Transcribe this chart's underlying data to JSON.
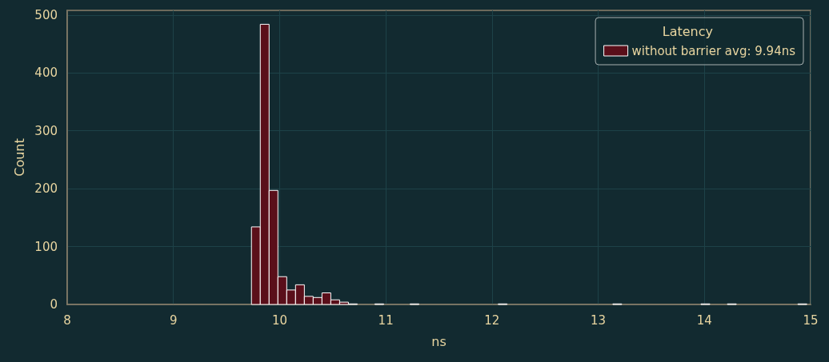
{
  "chart_data": {
    "type": "histogram",
    "xlabel": "ns",
    "ylabel": "Count",
    "legend_title": "Latency",
    "bins": [
      9.735,
      9.818,
      9.901,
      9.984,
      10.067,
      10.15,
      10.233,
      10.316,
      10.399,
      10.482,
      10.565,
      10.648,
      10.731,
      10.814,
      10.897,
      10.98,
      11.063,
      11.146,
      11.229,
      11.312,
      11.395,
      11.478,
      11.561,
      11.644,
      11.727,
      11.81,
      11.893,
      11.976,
      12.059,
      12.142,
      12.225,
      12.308,
      12.391,
      12.474,
      12.557,
      12.64,
      12.723,
      12.806,
      12.889,
      12.972,
      13.055,
      13.138,
      13.221,
      13.304,
      13.387,
      13.47,
      13.553,
      13.636,
      13.719,
      13.802,
      13.885,
      13.968,
      14.051,
      14.134,
      14.217,
      14.3,
      14.383,
      14.466,
      14.549,
      14.632,
      14.715,
      14.798,
      14.881,
      14.964
    ],
    "series": [
      {
        "name": "without barrier avg: 9.94ns",
        "color": "#5a0f1a",
        "values": [
          134,
          484,
          197,
          48,
          25,
          34,
          14,
          12,
          20,
          8,
          4,
          1,
          0,
          0,
          1,
          0,
          0,
          0,
          1,
          0,
          0,
          0,
          0,
          0,
          0,
          0,
          0,
          0,
          1,
          0,
          0,
          0,
          0,
          0,
          0,
          0,
          0,
          0,
          0,
          0,
          0,
          1,
          0,
          0,
          0,
          0,
          0,
          0,
          0,
          0,
          0,
          1,
          0,
          0,
          1,
          0,
          0,
          0,
          0,
          0,
          0,
          0,
          1
        ]
      }
    ],
    "xlim": [
      8,
      15
    ],
    "xticks": [
      8,
      9,
      10,
      11,
      12,
      13,
      14,
      15
    ],
    "ylim": [
      0,
      508
    ],
    "yticks": [
      0,
      100,
      200,
      300,
      400,
      500
    ],
    "grid": true,
    "legend": "top right"
  }
}
